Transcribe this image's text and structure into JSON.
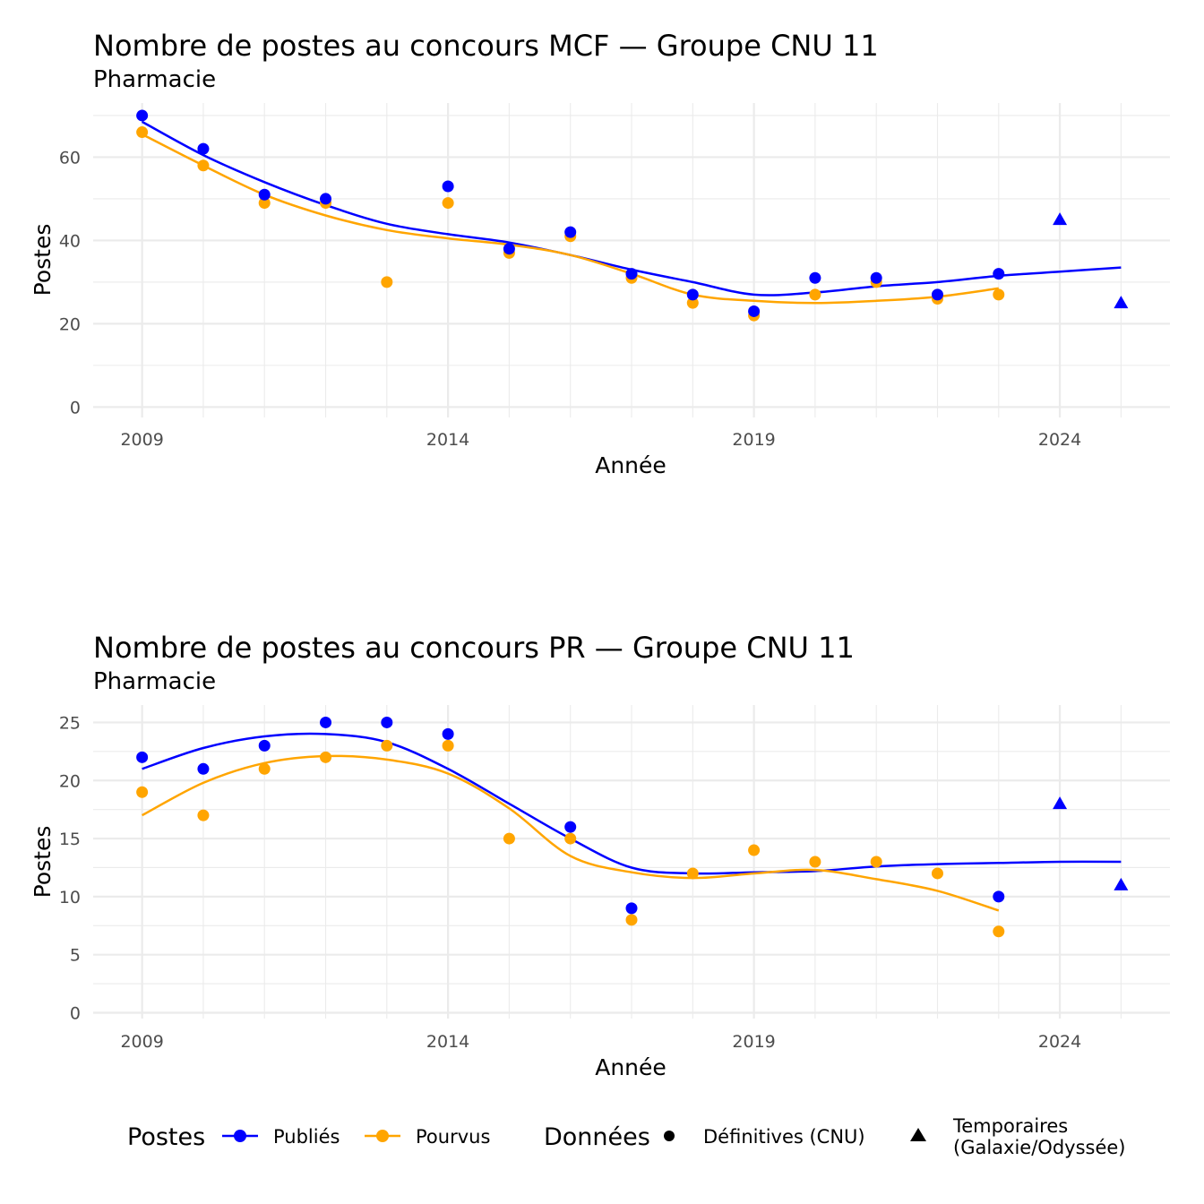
{
  "colors": {
    "published": "#0000FF",
    "filled": "#FFA500",
    "grid": "#EBEBEB",
    "tick_text": "#4D4D4D"
  },
  "chart_data": [
    {
      "type": "scatter",
      "title": "Nombre de postes au concours MCF —  Groupe CNU 11",
      "subtitle": "Pharmacie",
      "xlabel": "Année",
      "ylabel": "Postes",
      "xlim": [
        2008.2,
        2025.8
      ],
      "ylim": [
        -2.5,
        73
      ],
      "xticks": [
        2009,
        2014,
        2019,
        2024
      ],
      "yticks": [
        0,
        20,
        40,
        60
      ],
      "grid": true,
      "series": [
        {
          "name": "Publiés",
          "data_type": "Définitives (CNU)",
          "x": [
            2009,
            2010,
            2011,
            2012,
            2014,
            2015,
            2016,
            2017,
            2018,
            2019,
            2020,
            2021,
            2022,
            2023
          ],
          "y": [
            70,
            62,
            51,
            50,
            53,
            38,
            42,
            32,
            27,
            23,
            31,
            31,
            27,
            32
          ]
        },
        {
          "name": "Pourvus",
          "data_type": "Définitives (CNU)",
          "x": [
            2009,
            2010,
            2011,
            2012,
            2013,
            2014,
            2015,
            2016,
            2017,
            2018,
            2019,
            2020,
            2021,
            2022,
            2023
          ],
          "y": [
            66,
            58,
            49,
            49,
            30,
            49,
            37,
            41,
            31,
            25,
            22,
            27,
            30,
            26,
            27
          ]
        },
        {
          "name": "Publiés",
          "data_type": "Temporaires (Galaxie/Odyssée)",
          "x": [
            2024,
            2025
          ],
          "y": [
            45,
            25
          ]
        }
      ],
      "smooth": [
        {
          "name": "Publiés",
          "x": [
            2009,
            2010,
            2011,
            2012,
            2013,
            2014,
            2015,
            2016,
            2017,
            2018,
            2019,
            2020,
            2021,
            2022,
            2023,
            2024,
            2025
          ],
          "y": [
            68.5,
            60.5,
            54,
            48.5,
            44,
            41.5,
            39.5,
            36.5,
            33,
            30,
            27,
            27.5,
            29,
            30,
            31.5,
            32.5,
            33.5
          ]
        },
        {
          "name": "Pourvus",
          "x": [
            2009,
            2010,
            2011,
            2012,
            2013,
            2014,
            2015,
            2016,
            2017,
            2018,
            2019,
            2020,
            2021,
            2022,
            2023
          ],
          "y": [
            65.5,
            58,
            51,
            46,
            42.5,
            40.5,
            39,
            36.5,
            32,
            27,
            25.5,
            25,
            25.5,
            26.5,
            28.5
          ]
        }
      ]
    },
    {
      "type": "scatter",
      "title": "Nombre de postes au concours PR —  Groupe CNU 11",
      "subtitle": "Pharmacie",
      "xlabel": "Année",
      "ylabel": "Postes",
      "xlim": [
        2008.2,
        2025.8
      ],
      "ylim": [
        -0.5,
        26.5
      ],
      "xticks": [
        2009,
        2014,
        2019,
        2024
      ],
      "yticks": [
        0,
        5,
        10,
        15,
        20,
        25
      ],
      "grid": true,
      "series": [
        {
          "name": "Publiés",
          "data_type": "Définitives (CNU)",
          "x": [
            2009,
            2010,
            2011,
            2012,
            2013,
            2014,
            2016,
            2017,
            2023
          ],
          "y": [
            22,
            21,
            23,
            25,
            25,
            24,
            16,
            9,
            10
          ]
        },
        {
          "name": "Pourvus",
          "data_type": "Définitives (CNU)",
          "x": [
            2009,
            2010,
            2011,
            2012,
            2013,
            2014,
            2015,
            2016,
            2017,
            2018,
            2019,
            2020,
            2021,
            2022,
            2023
          ],
          "y": [
            19,
            17,
            21,
            22,
            23,
            23,
            15,
            15,
            8,
            12,
            14,
            13,
            13,
            12,
            7
          ]
        },
        {
          "name": "Publiés",
          "data_type": "Temporaires (Galaxie/Odyssée)",
          "x": [
            2024,
            2025
          ],
          "y": [
            18,
            11
          ]
        }
      ],
      "smooth": [
        {
          "name": "Publiés",
          "x": [
            2009,
            2010,
            2011,
            2012,
            2013,
            2014,
            2015,
            2016,
            2017,
            2018,
            2019,
            2020,
            2021,
            2022,
            2023,
            2024,
            2025
          ],
          "y": [
            21,
            22.8,
            23.8,
            24,
            23.3,
            21,
            18,
            15,
            12.5,
            12,
            12.1,
            12.2,
            12.6,
            12.8,
            12.9,
            13,
            13
          ]
        },
        {
          "name": "Pourvus",
          "x": [
            2009,
            2010,
            2011,
            2012,
            2013,
            2014,
            2015,
            2016,
            2017,
            2018,
            2019,
            2020,
            2021,
            2022,
            2023
          ],
          "y": [
            17,
            19.8,
            21.5,
            22.1,
            21.8,
            20.6,
            17.6,
            13.5,
            12.1,
            11.6,
            12,
            12.3,
            11.5,
            10.5,
            8.8
          ]
        }
      ]
    }
  ],
  "legend": {
    "postes_title": "Postes",
    "postes_items": [
      "Publiés",
      "Pourvus"
    ],
    "donnees_title": "Données",
    "donnees_items": [
      "Définitives (CNU)",
      "Temporaires\n(Galaxie/Odyssée)"
    ]
  }
}
